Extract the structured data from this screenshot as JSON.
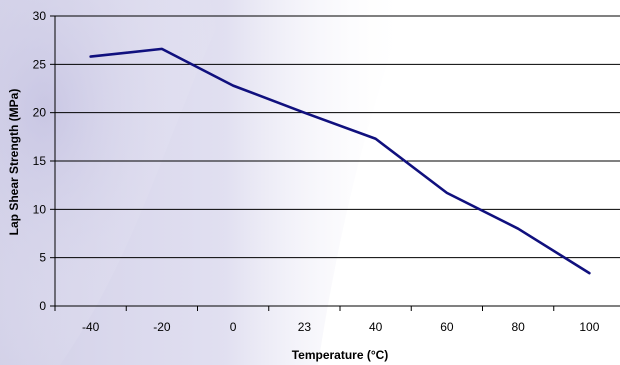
{
  "chart_data": {
    "type": "line",
    "title": "",
    "xlabel": "Temperature (°C)",
    "ylabel": "Lap Shear Strength (MPa)",
    "categories": [
      "-40",
      "-20",
      "0",
      "23",
      "40",
      "60",
      "80",
      "100"
    ],
    "series": [
      {
        "values": [
          25.8,
          26.6,
          22.8,
          20.0,
          17.3,
          11.7,
          8.0,
          3.4
        ]
      }
    ],
    "ylim": [
      0,
      30
    ],
    "yticks": [
      0,
      5,
      10,
      15,
      20,
      25,
      30
    ],
    "grid": "horizontal",
    "colors": {
      "line": "#10107e",
      "grid": "#000000",
      "background_swoosh": "#c9c7e3"
    }
  }
}
